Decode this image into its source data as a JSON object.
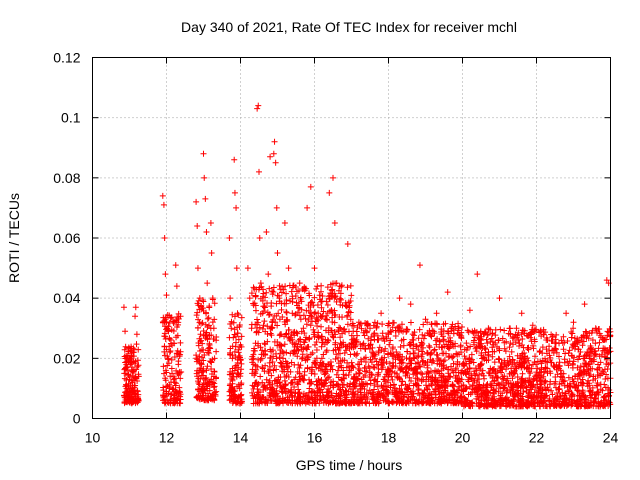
{
  "chart_data": {
    "type": "scatter",
    "title": "Day 340 of 2021, Rate Of TEC Index for receiver mchl",
    "xlabel": "GPS time / hours",
    "ylabel": "ROTI / TECUs",
    "xlim": [
      10,
      24
    ],
    "ylim": [
      0,
      0.12
    ],
    "xticks": [
      10,
      12,
      14,
      16,
      18,
      20,
      22,
      24
    ],
    "xtick_labels": [
      "10",
      "12",
      "14",
      "16",
      "18",
      "20",
      "22",
      "24"
    ],
    "yticks": [
      0,
      0.02,
      0.04,
      0.06,
      0.08,
      0.1,
      0.12
    ],
    "ytick_labels": [
      "0",
      "0.02",
      "0.04",
      "0.06",
      "0.08",
      "0.1",
      "0.12"
    ],
    "grid": true,
    "marker": "+",
    "color": "#ff0000",
    "series": [
      {
        "name": "ROTI",
        "points": [
          [
            10.85,
            0.037
          ],
          [
            10.88,
            0.029
          ],
          [
            10.9,
            0.015
          ],
          [
            10.92,
            0.01
          ],
          [
            10.95,
            0.02
          ],
          [
            10.98,
            0.008
          ],
          [
            11.0,
            0.013
          ],
          [
            11.02,
            0.018
          ],
          [
            11.05,
            0.006
          ],
          [
            11.08,
            0.012
          ],
          [
            11.1,
            0.022
          ],
          [
            11.12,
            0.016
          ],
          [
            11.15,
            0.034
          ],
          [
            11.17,
            0.037
          ],
          [
            11.2,
            0.028
          ],
          [
            11.22,
            0.009
          ],
          [
            11.25,
            0.014
          ],
          [
            11.9,
            0.074
          ],
          [
            11.93,
            0.071
          ],
          [
            11.95,
            0.06
          ],
          [
            11.97,
            0.048
          ],
          [
            12.0,
            0.041
          ],
          [
            12.02,
            0.03
          ],
          [
            12.05,
            0.02
          ],
          [
            12.08,
            0.01
          ],
          [
            12.1,
            0.008
          ],
          [
            12.15,
            0.015
          ],
          [
            12.2,
            0.025
          ],
          [
            12.22,
            0.012
          ],
          [
            12.25,
            0.051
          ],
          [
            12.28,
            0.044
          ],
          [
            12.3,
            0.006
          ],
          [
            12.32,
            0.018
          ],
          [
            12.35,
            0.009
          ],
          [
            12.38,
            0.034
          ],
          [
            12.8,
            0.072
          ],
          [
            12.83,
            0.064
          ],
          [
            12.85,
            0.05
          ],
          [
            12.9,
            0.04
          ],
          [
            12.92,
            0.028
          ],
          [
            12.95,
            0.018
          ],
          [
            12.98,
            0.01
          ],
          [
            13.0,
            0.088
          ],
          [
            13.02,
            0.08
          ],
          [
            13.05,
            0.073
          ],
          [
            13.08,
            0.062
          ],
          [
            13.1,
            0.045
          ],
          [
            13.12,
            0.022
          ],
          [
            13.15,
            0.012
          ],
          [
            13.2,
            0.065
          ],
          [
            13.22,
            0.055
          ],
          [
            13.25,
            0.04
          ],
          [
            13.28,
            0.03
          ],
          [
            13.3,
            0.02
          ],
          [
            13.32,
            0.008
          ],
          [
            13.7,
            0.06
          ],
          [
            13.72,
            0.04
          ],
          [
            13.75,
            0.03
          ],
          [
            13.78,
            0.02
          ],
          [
            13.8,
            0.015
          ],
          [
            13.83,
            0.086
          ],
          [
            13.85,
            0.075
          ],
          [
            13.88,
            0.07
          ],
          [
            13.9,
            0.05
          ],
          [
            13.92,
            0.035
          ],
          [
            13.95,
            0.022
          ],
          [
            13.97,
            0.01
          ],
          [
            13.98,
            0.005
          ],
          [
            14.0,
            0.015
          ],
          [
            14.2,
            0.05
          ],
          [
            14.25,
            0.04
          ],
          [
            14.3,
            0.03
          ],
          [
            14.35,
            0.02
          ],
          [
            14.4,
            0.015
          ],
          [
            14.45,
            0.103
          ],
          [
            14.48,
            0.104
          ],
          [
            14.5,
            0.082
          ],
          [
            14.52,
            0.06
          ],
          [
            14.55,
            0.045
          ],
          [
            14.6,
            0.035
          ],
          [
            14.65,
            0.025
          ],
          [
            14.7,
            0.062
          ],
          [
            14.75,
            0.048
          ],
          [
            14.8,
            0.087
          ],
          [
            14.85,
            0.03
          ],
          [
            14.9,
            0.088
          ],
          [
            14.92,
            0.092
          ],
          [
            14.95,
            0.085
          ],
          [
            14.98,
            0.07
          ],
          [
            15.0,
            0.055
          ],
          [
            15.05,
            0.04
          ],
          [
            15.1,
            0.028
          ],
          [
            15.15,
            0.02
          ],
          [
            15.2,
            0.065
          ],
          [
            15.3,
            0.05
          ],
          [
            15.4,
            0.035
          ],
          [
            15.5,
            0.025
          ],
          [
            15.6,
            0.045
          ],
          [
            15.7,
            0.03
          ],
          [
            15.8,
            0.07
          ],
          [
            15.9,
            0.077
          ],
          [
            16.0,
            0.05
          ],
          [
            16.1,
            0.035
          ],
          [
            16.2,
            0.02
          ],
          [
            16.3,
            0.015
          ],
          [
            16.4,
            0.075
          ],
          [
            16.5,
            0.08
          ],
          [
            16.55,
            0.065
          ],
          [
            16.6,
            0.045
          ],
          [
            16.7,
            0.03
          ],
          [
            16.9,
            0.058
          ],
          [
            17.0,
            0.025
          ],
          [
            17.2,
            0.032
          ],
          [
            17.5,
            0.03
          ],
          [
            17.8,
            0.035
          ],
          [
            18.0,
            0.028
          ],
          [
            18.3,
            0.04
          ],
          [
            18.6,
            0.038
          ],
          [
            18.85,
            0.051
          ],
          [
            19.0,
            0.033
          ],
          [
            19.3,
            0.035
          ],
          [
            19.6,
            0.042
          ],
          [
            19.9,
            0.03
          ],
          [
            20.2,
            0.036
          ],
          [
            20.4,
            0.048
          ],
          [
            20.7,
            0.03
          ],
          [
            21.0,
            0.04
          ],
          [
            21.3,
            0.028
          ],
          [
            21.6,
            0.035
          ],
          [
            21.9,
            0.031
          ],
          [
            22.2,
            0.028
          ],
          [
            22.5,
            0.025
          ],
          [
            22.8,
            0.035
          ],
          [
            23.0,
            0.032
          ],
          [
            23.3,
            0.038
          ],
          [
            23.6,
            0.03
          ],
          [
            23.9,
            0.046
          ],
          [
            23.95,
            0.045
          ]
        ],
        "dense_bands": [
          {
            "x0": 14.3,
            "x1": 17.0,
            "ymin": 0.005,
            "ymax": 0.045,
            "n": 900
          },
          {
            "x0": 17.0,
            "x1": 20.0,
            "ymin": 0.005,
            "ymax": 0.032,
            "n": 900
          },
          {
            "x0": 20.0,
            "x1": 24.0,
            "ymin": 0.004,
            "ymax": 0.03,
            "n": 1200
          },
          {
            "x0": 10.85,
            "x1": 11.25,
            "ymin": 0.005,
            "ymax": 0.025,
            "n": 150
          },
          {
            "x0": 11.9,
            "x1": 12.4,
            "ymin": 0.005,
            "ymax": 0.035,
            "n": 150
          },
          {
            "x0": 12.8,
            "x1": 13.35,
            "ymin": 0.006,
            "ymax": 0.04,
            "n": 180
          },
          {
            "x0": 13.7,
            "x1": 14.05,
            "ymin": 0.005,
            "ymax": 0.035,
            "n": 120
          }
        ]
      }
    ]
  }
}
